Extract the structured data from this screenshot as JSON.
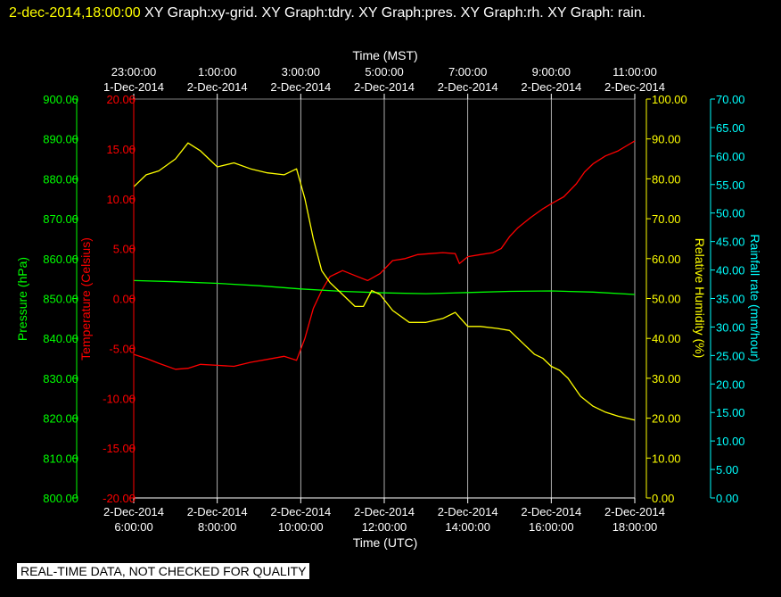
{
  "header": {
    "timestamp": "2-dec-2014,18:00:00",
    "graph_titles": "XY Graph:xy-grid.  XY Graph:tdry.  XY Graph:pres.  XY Graph:rh.  XY Graph: rain."
  },
  "notice": "REAL-TIME DATA, NOT CHECKED FOR QUALITY",
  "colors": {
    "background": "#000000",
    "temperature": "#ff0000",
    "pressure": "#00ff00",
    "humidity": "#ffff00",
    "rain": "#00ffff",
    "grid": "#ffffff"
  },
  "chart_data": {
    "type": "line",
    "top_axis": {
      "label": "Time (MST)",
      "ticks": [
        [
          "23:00:00",
          "1-Dec-2014"
        ],
        [
          "1:00:00",
          "2-Dec-2014"
        ],
        [
          "3:00:00",
          "2-Dec-2014"
        ],
        [
          "5:00:00",
          "2-Dec-2014"
        ],
        [
          "7:00:00",
          "2-Dec-2014"
        ],
        [
          "9:00:00",
          "2-Dec-2014"
        ],
        [
          "11:00:00",
          "2-Dec-2014"
        ]
      ]
    },
    "bottom_axis": {
      "label": "Time (UTC)",
      "ticks": [
        [
          "2-Dec-2014",
          "6:00:00"
        ],
        [
          "2-Dec-2014",
          "8:00:00"
        ],
        [
          "2-Dec-2014",
          "10:00:00"
        ],
        [
          "2-Dec-2014",
          "12:00:00"
        ],
        [
          "2-Dec-2014",
          "14:00:00"
        ],
        [
          "2-Dec-2014",
          "16:00:00"
        ],
        [
          "2-Dec-2014",
          "18:00:00"
        ]
      ],
      "range_hours_utc": [
        6,
        18
      ]
    },
    "grid": "vertical lines at each tick",
    "axes": {
      "pressure": {
        "label": "Pressure (hPa)",
        "side": "outer-left",
        "range": [
          800,
          900
        ],
        "ticks": [
          "800.00",
          "810.00",
          "820.00",
          "830.00",
          "840.00",
          "850.00",
          "860.00",
          "870.00",
          "880.00",
          "890.00",
          "900.00"
        ]
      },
      "temperature": {
        "label": "Temperature (Celsius)",
        "side": "inner-left",
        "range": [
          -20,
          20
        ],
        "ticks": [
          "-20.00",
          "-15.00",
          "-10.00",
          "-5.00",
          "0.00",
          "5.00",
          "10.00",
          "15.00",
          "20.00"
        ]
      },
      "humidity": {
        "label": "Relative Humidity (%)",
        "side": "inner-right",
        "range": [
          0,
          100
        ],
        "ticks": [
          "0.00",
          "10.00",
          "20.00",
          "30.00",
          "40.00",
          "50.00",
          "60.00",
          "70.00",
          "80.00",
          "90.00",
          "100.00"
        ]
      },
      "rain": {
        "label": "Rainfall rate (mm/hour)",
        "side": "outer-right",
        "range": [
          0,
          70
        ],
        "ticks": [
          "0.00",
          "5.00",
          "10.00",
          "15.00",
          "20.00",
          "25.00",
          "30.00",
          "35.00",
          "40.00",
          "45.00",
          "50.00",
          "55.00",
          "60.00",
          "65.00",
          "70.00"
        ]
      }
    },
    "series": [
      {
        "name": "Temperature (Celsius)",
        "axis": "temperature",
        "color": "#ff0000",
        "x_hours_utc": [
          6.0,
          6.3,
          6.6,
          7.0,
          7.3,
          7.6,
          8.0,
          8.4,
          8.8,
          9.2,
          9.6,
          9.9,
          10.1,
          10.3,
          10.5,
          10.7,
          11.0,
          11.3,
          11.6,
          11.9,
          12.2,
          12.5,
          12.8,
          13.1,
          13.4,
          13.7,
          13.8,
          14.0,
          14.3,
          14.6,
          14.8,
          15.0,
          15.2,
          15.5,
          15.8,
          16.0,
          16.3,
          16.6,
          16.8,
          17.0,
          17.3,
          17.6,
          17.8,
          18.0
        ],
        "values": [
          -5.6,
          -6.0,
          -6.5,
          -7.1,
          -7.0,
          -6.6,
          -6.7,
          -6.8,
          -6.4,
          -6.1,
          -5.8,
          -6.2,
          -4.0,
          -1.0,
          0.8,
          2.2,
          2.8,
          2.3,
          1.8,
          2.5,
          3.8,
          4.0,
          4.4,
          4.5,
          4.6,
          4.5,
          3.5,
          4.2,
          4.4,
          4.6,
          5.0,
          6.2,
          7.1,
          8.1,
          9.0,
          9.5,
          10.2,
          11.5,
          12.7,
          13.5,
          14.3,
          14.8,
          15.3,
          15.8
        ]
      },
      {
        "name": "Pressure (hPa)",
        "axis": "pressure",
        "color": "#00ff00",
        "x_hours_utc": [
          6.0,
          7.0,
          8.0,
          9.0,
          10.0,
          11.0,
          12.0,
          13.0,
          14.0,
          15.0,
          16.0,
          17.0,
          18.0
        ],
        "values": [
          854.5,
          854.2,
          853.8,
          853.2,
          852.4,
          851.8,
          851.4,
          851.2,
          851.5,
          851.8,
          851.9,
          851.6,
          851.0
        ]
      },
      {
        "name": "Relative Humidity (%)",
        "axis": "humidity",
        "color": "#ffff00",
        "x_hours_utc": [
          6.0,
          6.3,
          6.6,
          7.0,
          7.3,
          7.6,
          8.0,
          8.4,
          8.8,
          9.2,
          9.6,
          9.9,
          10.1,
          10.3,
          10.5,
          10.7,
          11.0,
          11.3,
          11.5,
          11.7,
          11.9,
          12.2,
          12.6,
          13.0,
          13.4,
          13.7,
          14.0,
          14.3,
          14.7,
          15.0,
          15.3,
          15.6,
          15.8,
          16.0,
          16.2,
          16.4,
          16.7,
          17.0,
          17.3,
          17.6,
          18.0
        ],
        "values": [
          78.0,
          81.0,
          82.0,
          85.0,
          89.0,
          87.0,
          83.0,
          84.0,
          82.5,
          81.5,
          81.0,
          82.5,
          75.0,
          65.0,
          57.0,
          54.0,
          51.0,
          48.0,
          48.0,
          52.0,
          51.0,
          47.0,
          44.0,
          44.0,
          45.0,
          46.5,
          43.0,
          43.0,
          42.5,
          42.0,
          39.0,
          36.0,
          35.0,
          33.0,
          32.0,
          30.0,
          25.5,
          23.0,
          21.5,
          20.5,
          19.5
        ]
      },
      {
        "name": "Rainfall rate (mm/hour)",
        "axis": "rain",
        "color": "#00ffff",
        "x_hours_utc": [],
        "values": []
      }
    ]
  }
}
